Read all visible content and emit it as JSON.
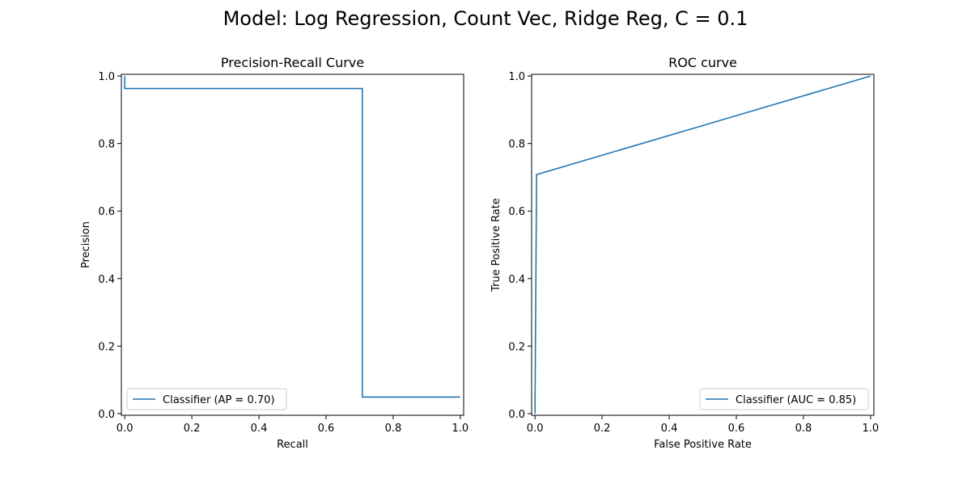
{
  "suptitle": "Model: Log Regression, Count Vec, Ridge Reg, C = 0.1",
  "chart_data": [
    {
      "type": "line",
      "title": "Precision-Recall Curve",
      "xlabel": "Recall",
      "ylabel": "Precision",
      "xlim": [
        -0.01,
        1.01
      ],
      "ylim": [
        -0.005,
        1.005
      ],
      "xticks": [
        0.0,
        0.2,
        0.4,
        0.6,
        0.8,
        1.0
      ],
      "yticks": [
        0.0,
        0.2,
        0.4,
        0.6,
        0.8,
        1.0
      ],
      "tick_labels": [
        "0.0",
        "0.2",
        "0.4",
        "0.6",
        "0.8",
        "1.0"
      ],
      "grid": false,
      "legend_position": "lower-left",
      "color": "#1f77b4",
      "series": [
        {
          "name": "Classifier (AP = 0.70)",
          "points": [
            [
              0.0,
              1.0
            ],
            [
              0.0,
              0.963
            ],
            [
              0.708,
              0.963
            ],
            [
              0.708,
              0.049
            ],
            [
              1.0,
              0.049
            ]
          ]
        }
      ]
    },
    {
      "type": "line",
      "title": "ROC curve",
      "xlabel": "False Positive Rate",
      "ylabel": "True Positive Rate",
      "xlim": [
        -0.01,
        1.01
      ],
      "ylim": [
        -0.005,
        1.005
      ],
      "xticks": [
        0.0,
        0.2,
        0.4,
        0.6,
        0.8,
        1.0
      ],
      "yticks": [
        0.0,
        0.2,
        0.4,
        0.6,
        0.8,
        1.0
      ],
      "tick_labels": [
        "0.0",
        "0.2",
        "0.4",
        "0.6",
        "0.8",
        "1.0"
      ],
      "grid": false,
      "legend_position": "lower-right",
      "color": "#1f77b4",
      "series": [
        {
          "name": "Classifier (AUC = 0.85)",
          "points": [
            [
              0.0,
              0.0
            ],
            [
              0.0048,
              0.708
            ],
            [
              1.0,
              1.0
            ]
          ]
        }
      ]
    }
  ]
}
